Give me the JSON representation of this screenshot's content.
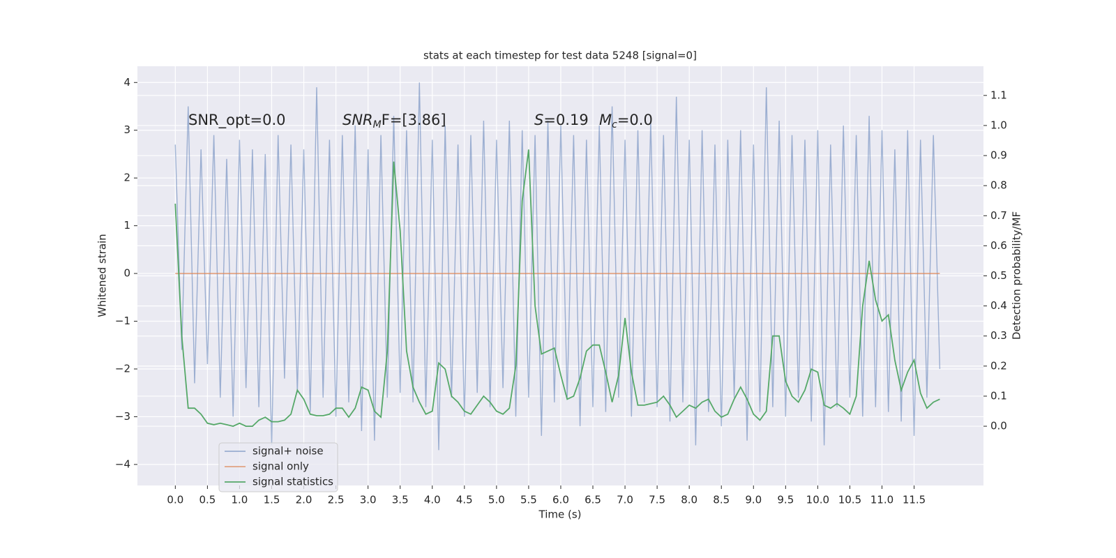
{
  "chart_data": {
    "type": "line",
    "title": "stats at each timestep for test data 5248 [signal=0]",
    "x_label": "Time (s)",
    "y_label": "Whitened strain",
    "y2_label": "Detection probability/MF",
    "x": [
      0.0,
      0.1,
      0.2,
      0.3,
      0.4,
      0.5,
      0.6,
      0.7,
      0.8,
      0.9,
      1.0,
      1.1,
      1.2,
      1.3,
      1.4,
      1.5,
      1.6,
      1.7,
      1.8,
      1.9,
      2.0,
      2.1,
      2.2,
      2.3,
      2.4,
      2.5,
      2.6,
      2.7,
      2.8,
      2.9,
      3.0,
      3.1,
      3.2,
      3.3,
      3.4,
      3.5,
      3.6,
      3.7,
      3.8,
      3.9,
      4.0,
      4.1,
      4.2,
      4.3,
      4.4,
      4.5,
      4.6,
      4.7,
      4.8,
      4.9,
      5.0,
      5.1,
      5.2,
      5.3,
      5.4,
      5.5,
      5.6,
      5.7,
      5.8,
      5.9,
      6.0,
      6.1,
      6.2,
      6.3,
      6.4,
      6.5,
      6.6,
      6.7,
      6.8,
      6.9,
      7.0,
      7.1,
      7.2,
      7.3,
      7.4,
      7.5,
      7.6,
      7.7,
      7.8,
      7.9,
      8.0,
      8.1,
      8.2,
      8.3,
      8.4,
      8.5,
      8.6,
      8.7,
      8.8,
      8.9,
      9.0,
      9.1,
      9.2,
      9.3,
      9.4,
      9.5,
      9.6,
      9.7,
      9.8,
      9.9,
      10.0,
      10.1,
      10.2,
      10.3,
      10.4,
      10.5,
      10.6,
      10.7,
      10.8,
      10.9,
      11.0,
      11.1,
      11.2,
      11.3,
      11.4,
      11.5,
      11.6,
      11.7,
      11.8,
      11.9
    ],
    "series": [
      {
        "name": "signal+ noise",
        "color": "#4c72b0",
        "opacity": 0.5,
        "values": [
          2.7,
          -1.6,
          3.5,
          -2.3,
          2.6,
          -1.9,
          2.9,
          -2.6,
          2.4,
          -3.0,
          2.8,
          -2.4,
          2.6,
          -2.8,
          2.5,
          -3.6,
          2.9,
          -2.2,
          2.7,
          -2.5,
          2.6,
          -2.9,
          3.9,
          -2.6,
          2.8,
          -3.0,
          2.9,
          -2.7,
          3.1,
          -3.3,
          2.6,
          -3.5,
          2.9,
          -2.6,
          3.3,
          -2.5,
          3.0,
          -2.7,
          4.0,
          -2.8,
          2.8,
          -3.7,
          3.1,
          -2.6,
          2.7,
          -3.0,
          2.9,
          -2.5,
          3.2,
          -2.8,
          2.8,
          -2.4,
          3.2,
          -3.0,
          3.0,
          -2.6,
          2.9,
          -3.4,
          3.2,
          -2.7,
          3.1,
          -2.6,
          2.9,
          -3.2,
          2.8,
          -2.8,
          3.1,
          -2.9,
          3.5,
          -2.6,
          2.8,
          -3.0,
          3.0,
          -2.7,
          3.2,
          -2.8,
          2.9,
          -3.1,
          3.7,
          -2.7,
          2.8,
          -3.6,
          3.0,
          -2.9,
          2.7,
          -3.2,
          2.8,
          -2.6,
          3.0,
          -3.5,
          2.7,
          -2.9,
          3.9,
          -2.8,
          3.2,
          -3.0,
          2.9,
          -2.6,
          2.8,
          -3.1,
          3.0,
          -3.6,
          2.7,
          -2.8,
          3.1,
          -2.6,
          2.9,
          -3.0,
          3.3,
          -2.8,
          3.0,
          -2.9,
          2.6,
          -3.1,
          3.0,
          -3.4,
          2.8,
          -2.6,
          2.9,
          -2.0
        ]
      },
      {
        "name": "signal only",
        "color": "#dd8452",
        "opacity": 0.7,
        "values": [
          0,
          0,
          0,
          0,
          0,
          0,
          0,
          0,
          0,
          0,
          0,
          0,
          0,
          0,
          0,
          0,
          0,
          0,
          0,
          0,
          0,
          0,
          0,
          0,
          0,
          0,
          0,
          0,
          0,
          0,
          0,
          0,
          0,
          0,
          0,
          0,
          0,
          0,
          0,
          0,
          0,
          0,
          0,
          0,
          0,
          0,
          0,
          0,
          0,
          0,
          0,
          0,
          0,
          0,
          0,
          0,
          0,
          0,
          0,
          0,
          0,
          0,
          0,
          0,
          0,
          0,
          0,
          0,
          0,
          0,
          0,
          0,
          0,
          0,
          0,
          0,
          0,
          0,
          0,
          0,
          0,
          0,
          0,
          0,
          0,
          0,
          0,
          0,
          0,
          0,
          0,
          0,
          0,
          0,
          0,
          0,
          0,
          0,
          0,
          0,
          0,
          0,
          0,
          0,
          0,
          0,
          0,
          0,
          0,
          0,
          0,
          0,
          0,
          0,
          0,
          0,
          0,
          0,
          0,
          0
        ]
      },
      {
        "name": "signal statistics",
        "color": "#55a868",
        "opacity": 1,
        "axis": "y2",
        "values": [
          0.74,
          0.3,
          0.06,
          0.06,
          0.04,
          0.01,
          0.005,
          0.01,
          0.005,
          0.0,
          0.01,
          0.0,
          0.0,
          0.02,
          0.03,
          0.015,
          0.015,
          0.02,
          0.04,
          0.12,
          0.09,
          0.04,
          0.035,
          0.035,
          0.04,
          0.06,
          0.06,
          0.03,
          0.06,
          0.13,
          0.12,
          0.05,
          0.03,
          0.25,
          0.88,
          0.65,
          0.25,
          0.13,
          0.08,
          0.04,
          0.05,
          0.21,
          0.19,
          0.1,
          0.08,
          0.05,
          0.04,
          0.07,
          0.1,
          0.08,
          0.05,
          0.04,
          0.06,
          0.2,
          0.75,
          0.92,
          0.4,
          0.24,
          0.25,
          0.26,
          0.17,
          0.09,
          0.1,
          0.16,
          0.25,
          0.27,
          0.27,
          0.18,
          0.08,
          0.17,
          0.36,
          0.18,
          0.07,
          0.07,
          0.075,
          0.08,
          0.1,
          0.07,
          0.03,
          0.05,
          0.07,
          0.06,
          0.08,
          0.09,
          0.05,
          0.03,
          0.04,
          0.09,
          0.13,
          0.09,
          0.04,
          0.02,
          0.05,
          0.3,
          0.3,
          0.15,
          0.1,
          0.08,
          0.12,
          0.19,
          0.18,
          0.07,
          0.06,
          0.075,
          0.06,
          0.04,
          0.1,
          0.4,
          0.55,
          0.42,
          0.35,
          0.37,
          0.22,
          0.12,
          0.18,
          0.22,
          0.11,
          0.06,
          0.08,
          0.09
        ]
      }
    ],
    "xlim": [
      -0.59,
      12.58
    ],
    "ylim": [
      -4.44,
      4.34
    ],
    "y2lim": [
      -0.197,
      1.197
    ],
    "xticks": [
      {
        "value": 0,
        "label": "0.0"
      },
      0.5,
      {
        "value": 1,
        "label": "1.0"
      },
      1.5,
      {
        "value": 2,
        "label": "2.0"
      },
      2.5,
      {
        "value": 3,
        "label": "3.0"
      },
      3.5,
      {
        "value": 4,
        "label": "4.0"
      },
      4.5,
      {
        "value": 5,
        "label": "5.0"
      },
      5.5,
      {
        "value": 6,
        "label": "6.0"
      },
      6.5,
      {
        "value": 7,
        "label": "7.0"
      },
      7.5,
      {
        "value": 8,
        "label": "8.0"
      },
      8.5,
      {
        "value": 9,
        "label": "9.0"
      },
      9.5,
      {
        "value": 10,
        "label": "10.0"
      },
      10.5,
      {
        "value": 11,
        "label": "11.0"
      },
      11.5
    ],
    "yticks": [
      {
        "value": -4,
        "label": "−4"
      },
      {
        "value": -3,
        "label": "−3"
      },
      {
        "value": -2,
        "label": "−2"
      },
      {
        "value": -1,
        "label": "−1"
      },
      0,
      1,
      2,
      3,
      4
    ],
    "y2ticks": [
      {
        "value": 0,
        "label": "0.0"
      },
      0.1,
      0.2,
      0.3,
      0.4,
      0.5,
      0.6,
      0.7,
      0.8,
      0.9,
      {
        "value": 1,
        "label": "1.0"
      },
      1.1
    ],
    "grid": true,
    "legend": "lower left",
    "annotations": [
      {
        "main": "SNR_opt=0.0"
      },
      {
        "main": "SNR",
        "sub": "M",
        "rest": "F=[3.86]",
        "italic": true
      },
      {
        "main": "S",
        "rest": "=0.19",
        "italic": true
      },
      {
        "main": "M",
        "sub": "c",
        "rest": "=0.0",
        "italic": true
      }
    ]
  }
}
